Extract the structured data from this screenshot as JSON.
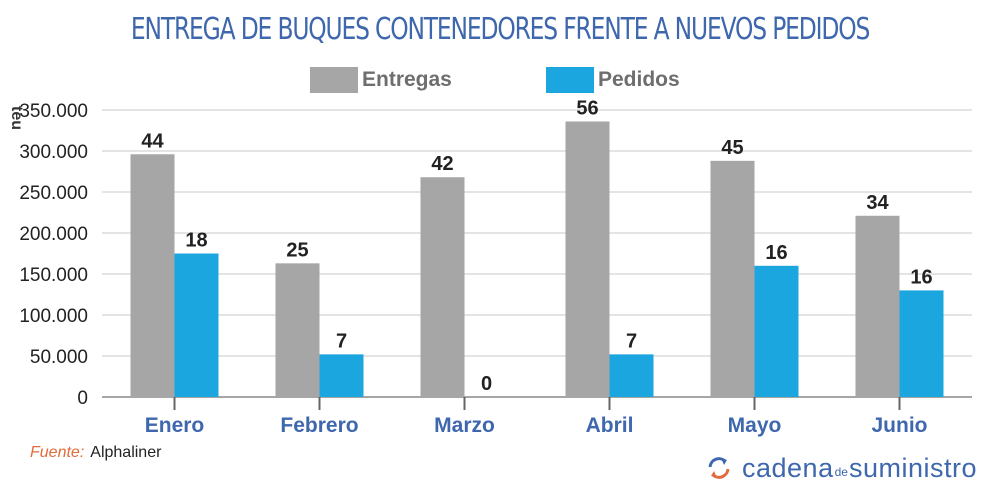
{
  "title": "ENTREGA DE BUQUES CONTENEDORES FRENTE A NUEVOS PEDIDOS",
  "legend": [
    {
      "name": "Entregas",
      "color": "#a6a6a6"
    },
    {
      "name": "Pedidos",
      "color": "#1ca6df"
    }
  ],
  "source": {
    "label": "Fuente:",
    "value": "Alphaliner"
  },
  "brand": {
    "part1": "cadena",
    "part2": "de",
    "part3": "suministro",
    "icon": "cycle-arrows-icon"
  },
  "chart_data": {
    "type": "bar",
    "title": "ENTREGA DE BUQUES CONTENEDORES FRENTE A NUEVOS PEDIDOS",
    "xlabel": "",
    "ylabel": "teu",
    "ylim": [
      0,
      350000
    ],
    "yticks": [
      0,
      50000,
      100000,
      150000,
      200000,
      250000,
      300000,
      350000
    ],
    "ytick_labels": [
      "0",
      "50.000",
      "100.000",
      "150.000",
      "200.000",
      "250.000",
      "300.000",
      "350.000"
    ],
    "categories": [
      "Enero",
      "Febrero",
      "Marzo",
      "Abril",
      "Mayo",
      "Junio"
    ],
    "series": [
      {
        "name": "Entregas",
        "color": "#a6a6a6",
        "values": [
          296000,
          163000,
          268000,
          336000,
          288000,
          221000
        ],
        "labels": [
          "44",
          "25",
          "42",
          "56",
          "45",
          "34"
        ]
      },
      {
        "name": "Pedidos",
        "color": "#1ca6df",
        "values": [
          175000,
          52000,
          0,
          52000,
          160000,
          130000
        ],
        "labels": [
          "18",
          "7",
          "0",
          "7",
          "16",
          "16"
        ]
      }
    ],
    "grid": true,
    "legend_position": "top-center"
  }
}
